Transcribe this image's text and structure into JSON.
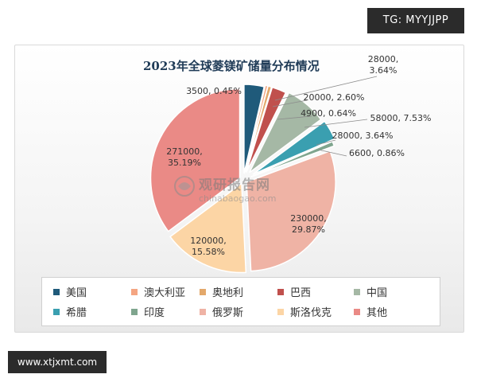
{
  "badges": {
    "top_right": "TG: MYYJJPP",
    "bottom_left": "www.xtjxmt.com"
  },
  "watermark": {
    "cn": "观研报告网",
    "en": "chinabaogao.com"
  },
  "chart_data": {
    "type": "pie",
    "title": "2023年全球菱镁矿储量分布情况",
    "exploded": true,
    "legend_position": "bottom",
    "slices": [
      {
        "name": "美国",
        "value": 28000,
        "percent": "3.64%",
        "label": "28000,\n3.64%",
        "color": "#1f5a7a"
      },
      {
        "name": "澳大利亚",
        "value": 3500,
        "percent": "0.45%",
        "label": "3500, 0.45%",
        "color": "#f4a582"
      },
      {
        "name": "奥地利",
        "value": 4900,
        "percent": "0.64%",
        "label": "4900, 0.64%",
        "color": "#e3a86b"
      },
      {
        "name": "巴西",
        "value": 20000,
        "percent": "2.60%",
        "label": "20000, 2.60%",
        "color": "#c0504d"
      },
      {
        "name": "中国",
        "value": 58000,
        "percent": "7.53%",
        "label": "58000, 7.53%",
        "color": "#a5b8a5"
      },
      {
        "name": "希腊",
        "value": 28000,
        "percent": "3.64%",
        "label": "28000, 3.64%",
        "color": "#3a9fb0"
      },
      {
        "name": "印度",
        "value": 6600,
        "percent": "0.86%",
        "label": "6600, 0.86%",
        "color": "#7fa58e"
      },
      {
        "name": "俄罗斯",
        "value": 230000,
        "percent": "29.87%",
        "label": "230000,\n29.87%",
        "color": "#efb3a5"
      },
      {
        "name": "斯洛伐克",
        "value": 120000,
        "percent": "15.58%",
        "label": "120000,\n15.58%",
        "color": "#fcd5a5"
      },
      {
        "name": "其他",
        "value": 271000,
        "percent": "35.19%",
        "label": "271000,\n35.19%",
        "color": "#ea8a86"
      }
    ]
  }
}
